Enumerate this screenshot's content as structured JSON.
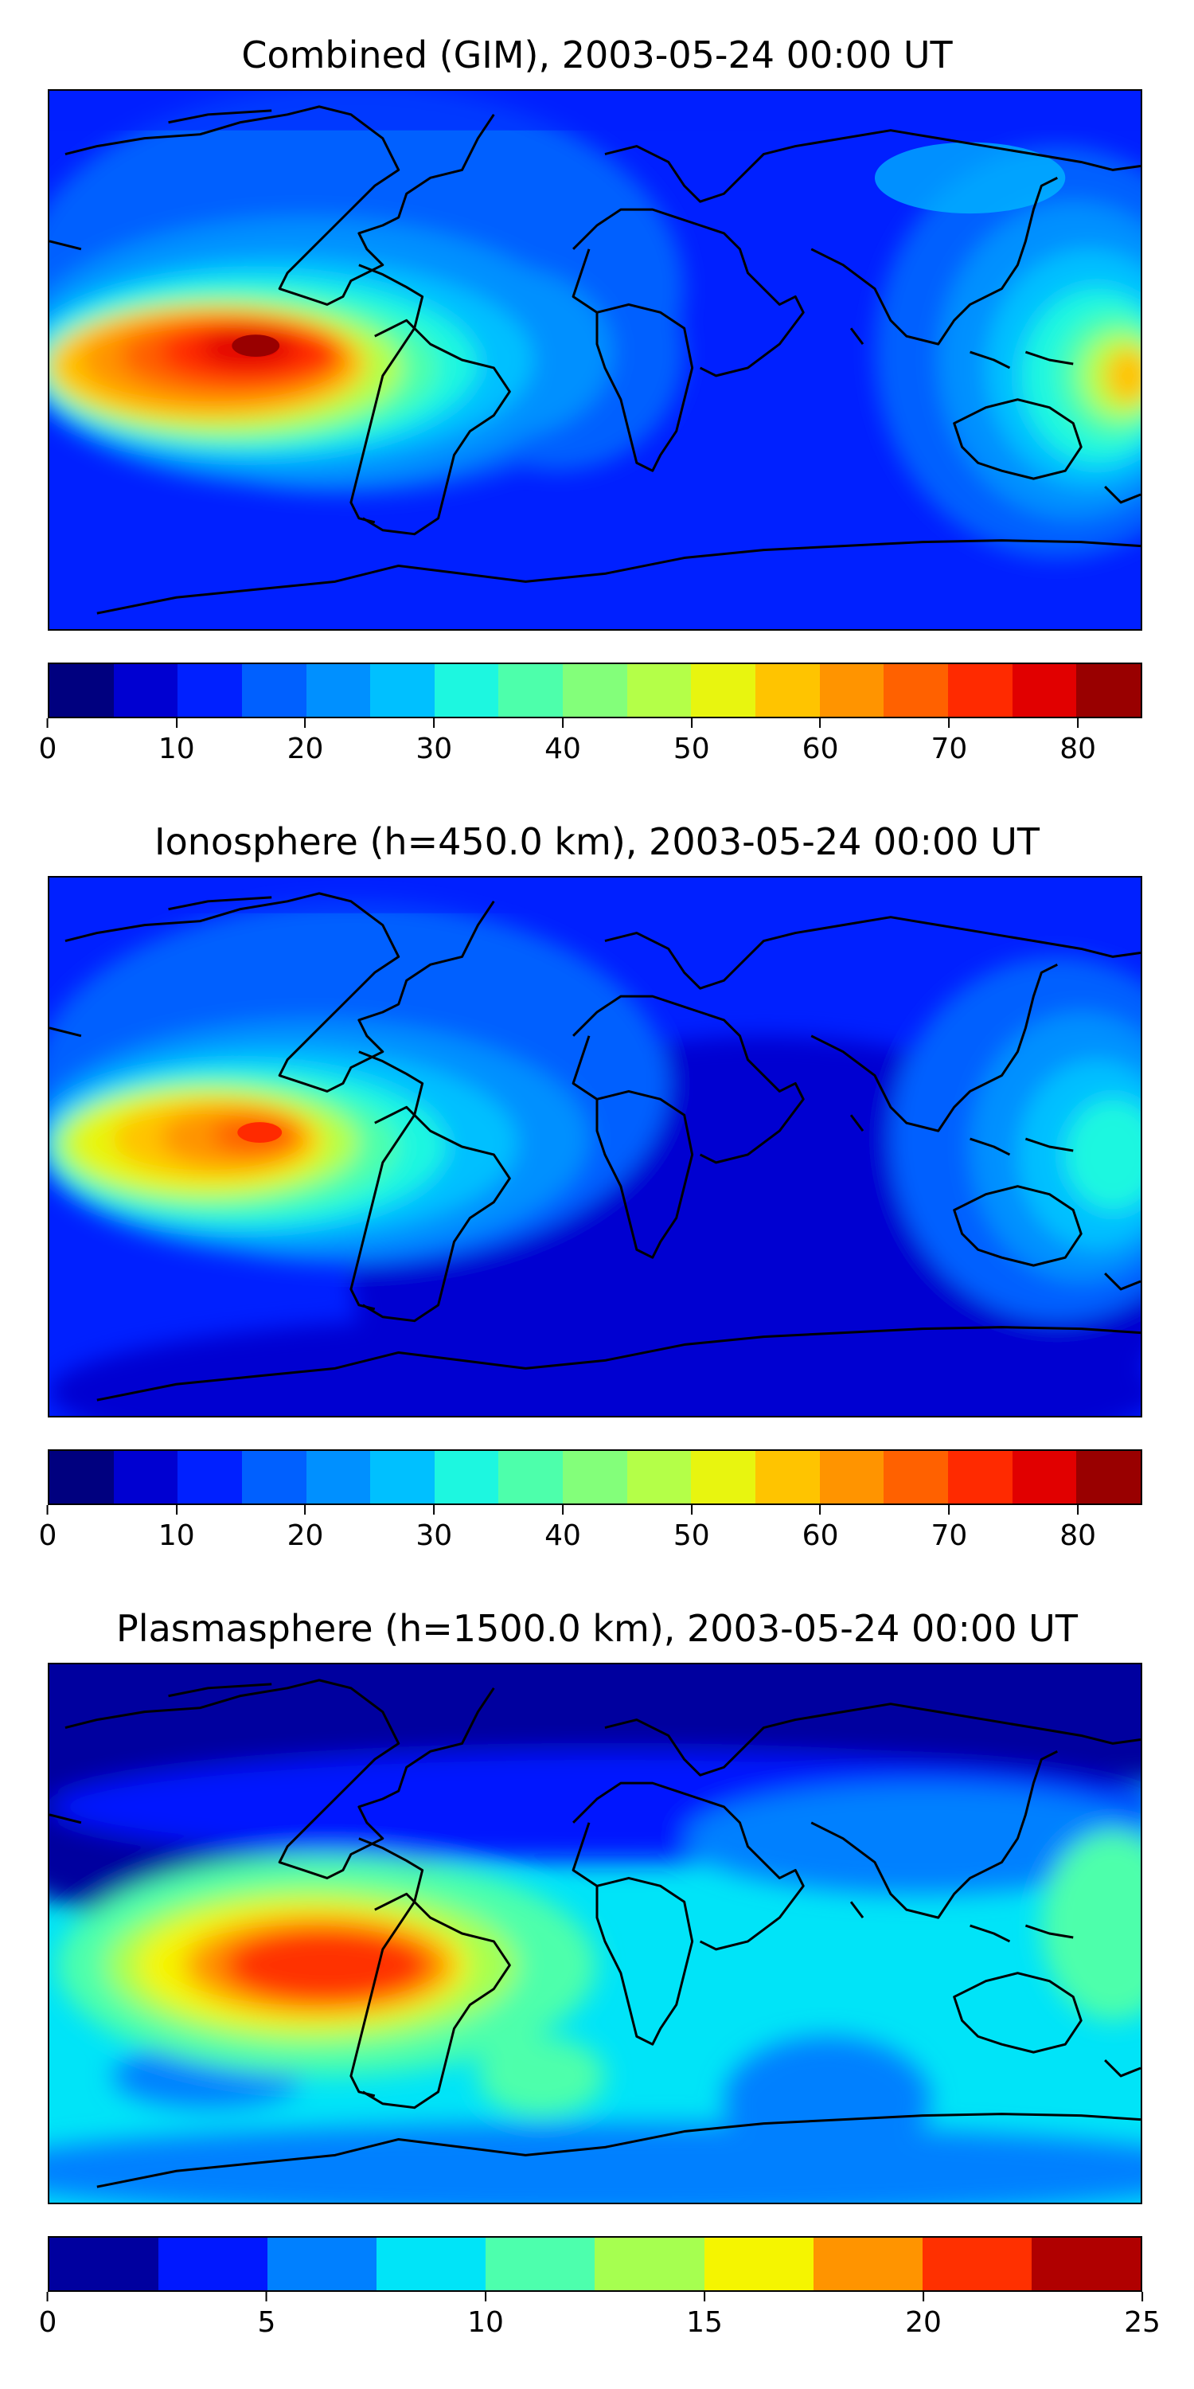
{
  "panels": [
    {
      "title": "Combined (GIM), 2003-05-24 00:00 UT",
      "colorbar": {
        "ticks": [
          "0",
          "10",
          "20",
          "30",
          "40",
          "50",
          "60",
          "70",
          "80"
        ],
        "tick_values": [
          0,
          10,
          20,
          30,
          40,
          50,
          60,
          70,
          80
        ],
        "min": 0,
        "max": 85,
        "colors": [
          "#00007f",
          "#0000d1",
          "#0020ff",
          "#0060ff",
          "#0090ff",
          "#00c0ff",
          "#1df7e0",
          "#4dffab",
          "#83ff7a",
          "#b4ff48",
          "#e8f50f",
          "#ffc400",
          "#ff9400",
          "#ff6100",
          "#ff2a00",
          "#e10000",
          "#990000"
        ]
      }
    },
    {
      "title": "Ionosphere  (h=450.0 km), 2003-05-24 00:00 UT",
      "colorbar": {
        "ticks": [
          "0",
          "10",
          "20",
          "30",
          "40",
          "50",
          "60",
          "70",
          "80"
        ],
        "tick_values": [
          0,
          10,
          20,
          30,
          40,
          50,
          60,
          70,
          80
        ],
        "min": 0,
        "max": 85,
        "colors": [
          "#00007f",
          "#0000d1",
          "#0020ff",
          "#0060ff",
          "#0090ff",
          "#00c0ff",
          "#1df7e0",
          "#4dffab",
          "#83ff7a",
          "#b4ff48",
          "#e8f50f",
          "#ffc400",
          "#ff9400",
          "#ff6100",
          "#ff2a00",
          "#e10000",
          "#990000"
        ]
      }
    },
    {
      "title": "Plasmasphere (h=1500.0 km), 2003-05-24 00:00 UT",
      "colorbar": {
        "ticks": [
          "0",
          "5",
          "10",
          "15",
          "20",
          "25"
        ],
        "tick_values": [
          0,
          5,
          10,
          15,
          20,
          25
        ],
        "min": 0,
        "max": 25,
        "colors": [
          "#00009f",
          "#0018ff",
          "#0080ff",
          "#00e4f8",
          "#4dffad",
          "#a6ff50",
          "#f5f500",
          "#ff9400",
          "#ff3000",
          "#b00000"
        ]
      }
    }
  ]
}
